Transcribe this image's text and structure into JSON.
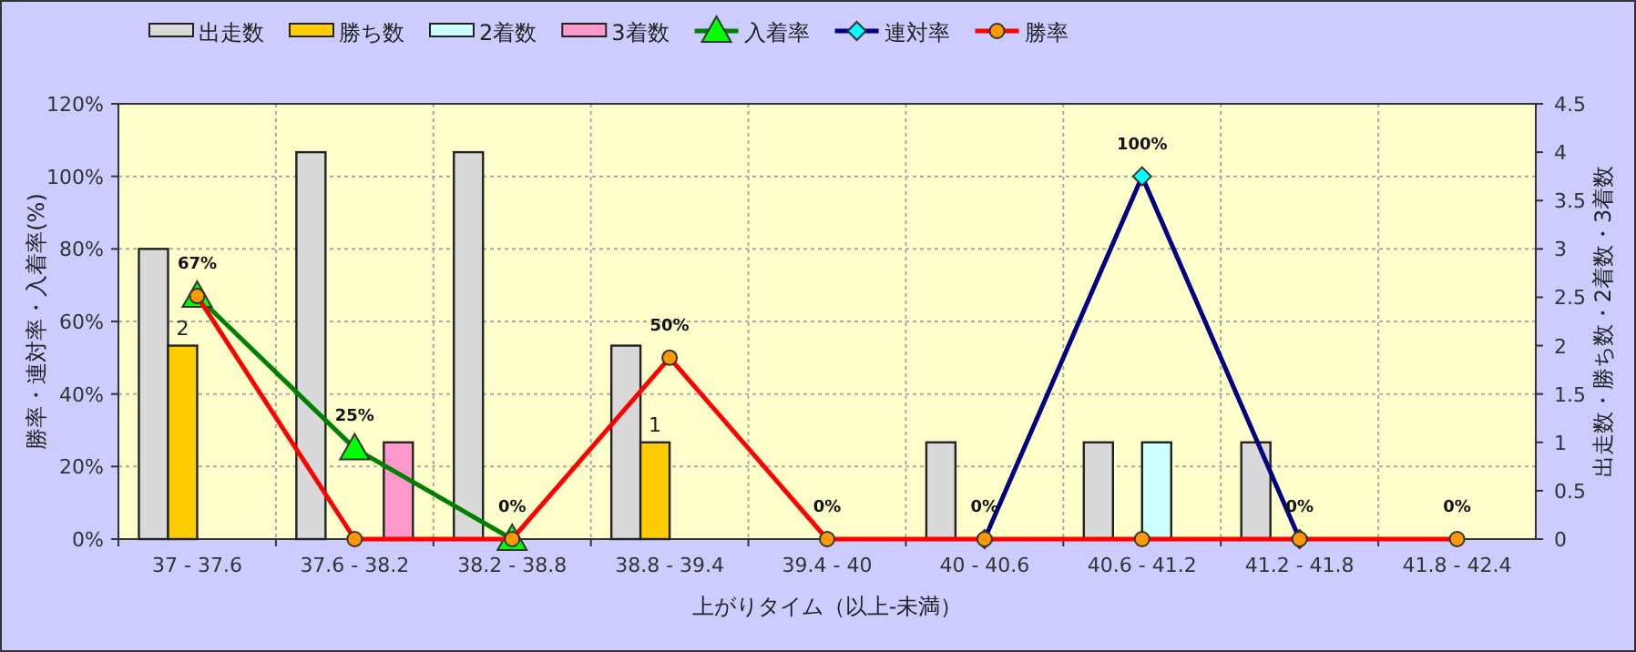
{
  "chart_data": {
    "type": "bar",
    "categories": [
      "37 - 37.6",
      "37.6 - 38.2",
      "38.2 - 38.8",
      "38.8 - 39.4",
      "39.4 - 40",
      "40 - 40.6",
      "40.6 - 41.2",
      "41.2 - 41.8",
      "41.8 - 42.4"
    ],
    "xlabel": "上がりタイム（以上-未満）",
    "ylabel": "勝率・連対率・入着率(%)",
    "y2label": "出走数・勝ち数・2着数・3着数",
    "ylim": [
      0,
      120
    ],
    "yticks": [
      {
        "value": 0,
        "label": "0%"
      },
      {
        "value": 20,
        "label": "20%"
      },
      {
        "value": 40,
        "label": "40%"
      },
      {
        "value": 60,
        "label": "60%"
      },
      {
        "value": 80,
        "label": "80%"
      },
      {
        "value": 100,
        "label": "100%"
      },
      {
        "value": 120,
        "label": "120%"
      }
    ],
    "y2lim": [
      0,
      4.5
    ],
    "y2ticks": [
      0,
      0.5,
      1,
      1.5,
      2,
      2.5,
      3,
      3.5,
      4,
      4.5
    ],
    "grid": true,
    "legend": "top left",
    "series": [
      {
        "name": "出走数",
        "axis": "y2",
        "color": "#d9d9d9",
        "values": [
          3,
          4,
          4,
          2,
          0,
          1,
          1,
          1,
          0
        ]
      },
      {
        "name": "勝ち数",
        "axis": "y2",
        "color": "#ffcc00",
        "values": [
          2,
          0,
          0,
          1,
          0,
          0,
          0,
          0,
          0
        ],
        "value_labels": [
          "2",
          null,
          null,
          "1",
          null,
          null,
          null,
          null,
          null
        ]
      },
      {
        "name": "2着数",
        "axis": "y2",
        "color": "#ccffff",
        "values": [
          0,
          0,
          0,
          0,
          0,
          0,
          1,
          0,
          0
        ]
      },
      {
        "name": "3着数",
        "axis": "y2",
        "color": "#ff99cc",
        "values": [
          0,
          1,
          0,
          0,
          0,
          0,
          0,
          0,
          0
        ]
      },
      {
        "name": "入着率",
        "type": "line",
        "color": "#008000",
        "marker": "triangle",
        "colors": [
          "#00ff00",
          "#00ff00",
          "#00ff00",
          null,
          null,
          null,
          null,
          null,
          null
        ],
        "values": [
          67,
          25,
          0,
          null,
          null,
          null,
          null,
          null,
          null
        ],
        "value_labels": [
          null,
          "25%",
          null,
          null,
          null,
          null,
          null,
          null,
          null
        ]
      },
      {
        "name": "連対率",
        "type": "line",
        "color": "#000080",
        "marker": "diamond",
        "colors": [
          null,
          null,
          null,
          null,
          null,
          "#00ffff",
          "#00ffff",
          "#00ffff",
          null
        ],
        "values": [
          null,
          null,
          null,
          null,
          null,
          0,
          100,
          0,
          null
        ],
        "value_labels": [
          null,
          null,
          null,
          null,
          null,
          null,
          "100%",
          null,
          null
        ]
      },
      {
        "name": "勝率",
        "type": "line",
        "color": "#ff0000",
        "marker": "circle",
        "colors": [
          "#ff9900",
          "#ff9900",
          "#ff9900",
          "#ff9900",
          "#ff9900",
          "#ff9900",
          "#ff9900",
          "#ff9900",
          "#ff9900"
        ],
        "values": [
          67,
          0,
          0,
          50,
          0,
          0,
          0,
          0,
          0
        ],
        "value_labels": [
          "67%",
          null,
          "0%",
          "50%",
          "0%",
          "0%",
          null,
          "0%",
          "0%"
        ]
      }
    ]
  }
}
